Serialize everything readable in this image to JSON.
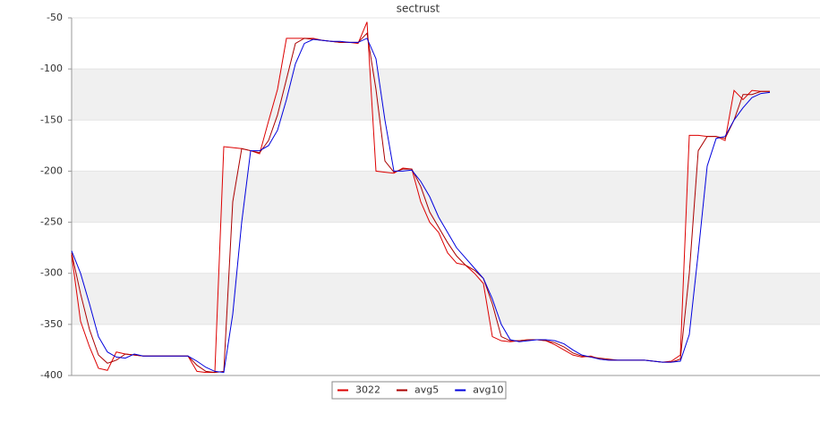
{
  "chart_data": {
    "type": "line",
    "title": "sectrust",
    "ylim": [
      -400,
      -50
    ],
    "yticks": [
      -50,
      -100,
      -150,
      -200,
      -250,
      -300,
      -350,
      -400
    ],
    "grid": true,
    "series": [
      {
        "name": "3022",
        "color": "#dd0000",
        "values": [
          -282,
          -347,
          -372,
          -393,
          -395,
          -377,
          -379,
          -380,
          -381,
          -381,
          -381,
          -381,
          -381,
          -381,
          -396,
          -397,
          -397,
          -176,
          -177,
          -178,
          -180,
          -183,
          -151,
          -120,
          -70,
          -70,
          -70,
          -70,
          -72,
          -73,
          -74,
          -74,
          -75,
          -54,
          -200,
          -201,
          -202,
          -197,
          -198,
          -230,
          -250,
          -260,
          -280,
          -290,
          -292,
          -300,
          -310,
          -362,
          -366,
          -367,
          -366,
          -365,
          -365,
          -366,
          -370,
          -375,
          -380,
          -382,
          -381,
          -384,
          -385,
          -385,
          -385,
          -385,
          -385,
          -386,
          -387,
          -386,
          -380,
          -165,
          -165,
          -166,
          -166,
          -170,
          -121,
          -130,
          -121,
          -122,
          -122
        ]
      },
      {
        "name": "avg5",
        "color": "#aa0000",
        "values": [
          -280,
          -320,
          -355,
          -380,
          -388,
          -385,
          -379,
          -380,
          -381,
          -381,
          -381,
          -381,
          -381,
          -381,
          -390,
          -396,
          -397,
          -396,
          -230,
          -178,
          -180,
          -182,
          -170,
          -145,
          -110,
          -75,
          -70,
          -71,
          -72,
          -73,
          -74,
          -74,
          -74,
          -65,
          -120,
          -190,
          -201,
          -198,
          -198,
          -215,
          -240,
          -255,
          -270,
          -283,
          -292,
          -297,
          -305,
          -330,
          -362,
          -366,
          -366,
          -365,
          -365,
          -366,
          -368,
          -372,
          -378,
          -381,
          -382,
          -383,
          -384,
          -385,
          -385,
          -385,
          -385,
          -386,
          -387,
          -387,
          -384,
          -300,
          -180,
          -166,
          -166,
          -168,
          -150,
          -125,
          -125,
          -122,
          -122
        ]
      },
      {
        "name": "avg10",
        "color": "#0000dd",
        "values": [
          -278,
          -300,
          -330,
          -362,
          -377,
          -382,
          -383,
          -379,
          -381,
          -381,
          -381,
          -381,
          -381,
          -381,
          -386,
          -392,
          -396,
          -397,
          -340,
          -250,
          -180,
          -180,
          -175,
          -160,
          -130,
          -95,
          -75,
          -71,
          -72,
          -73,
          -73,
          -74,
          -74,
          -70,
          -90,
          -150,
          -200,
          -200,
          -199,
          -210,
          -225,
          -245,
          -260,
          -275,
          -285,
          -295,
          -305,
          -325,
          -350,
          -365,
          -367,
          -366,
          -365,
          -365,
          -366,
          -369,
          -375,
          -380,
          -382,
          -384,
          -385,
          -385,
          -385,
          -385,
          -385,
          -386,
          -387,
          -387,
          -386,
          -360,
          -280,
          -195,
          -168,
          -166,
          -150,
          -138,
          -128,
          -124,
          -123
        ]
      }
    ]
  }
}
